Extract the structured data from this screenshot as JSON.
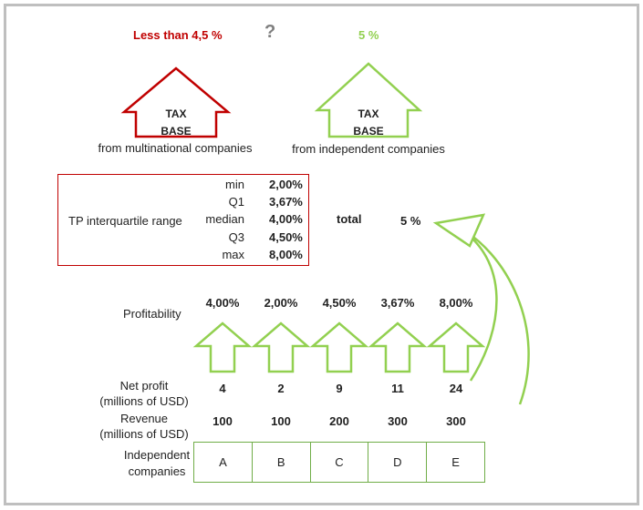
{
  "top": {
    "left_rate": "Less than 4,5 %",
    "question": "?",
    "right_rate": "5 %"
  },
  "arrows": {
    "left": {
      "line1": "TAX",
      "line2": "BASE",
      "caption": "from multinational companies"
    },
    "right": {
      "line1": "TAX",
      "line2": "BASE",
      "caption": "from independent companies"
    }
  },
  "range": {
    "label": "TP interquartile range",
    "rows": [
      {
        "name": "min",
        "value": "2,00%"
      },
      {
        "name": "Q1",
        "value": "3,67%"
      },
      {
        "name": "median",
        "value": "4,00%"
      },
      {
        "name": "Q3",
        "value": "4,50%"
      },
      {
        "name": "max",
        "value": "8,00%"
      }
    ]
  },
  "total": {
    "label": "total",
    "value": "5 %"
  },
  "rows": {
    "profitability_label": "Profitability",
    "net_profit_label": "Net profit\n(millions of USD)",
    "revenue_label": "Revenue\n(millions of USD)",
    "companies_label": "Independent\ncompanies"
  },
  "companies": [
    {
      "name": "A",
      "profitability": "4,00%",
      "net_profit": "4",
      "revenue": "100"
    },
    {
      "name": "B",
      "profitability": "2,00%",
      "net_profit": "2",
      "revenue": "100"
    },
    {
      "name": "C",
      "profitability": "4,50%",
      "net_profit": "9",
      "revenue": "200"
    },
    {
      "name": "D",
      "profitability": "3,67%",
      "net_profit": "11",
      "revenue": "300"
    },
    {
      "name": "E",
      "profitability": "8,00%",
      "net_profit": "24",
      "revenue": "300"
    }
  ],
  "colors": {
    "red": "#c00000",
    "green": "#92d050",
    "question": "#7f7f7f"
  }
}
